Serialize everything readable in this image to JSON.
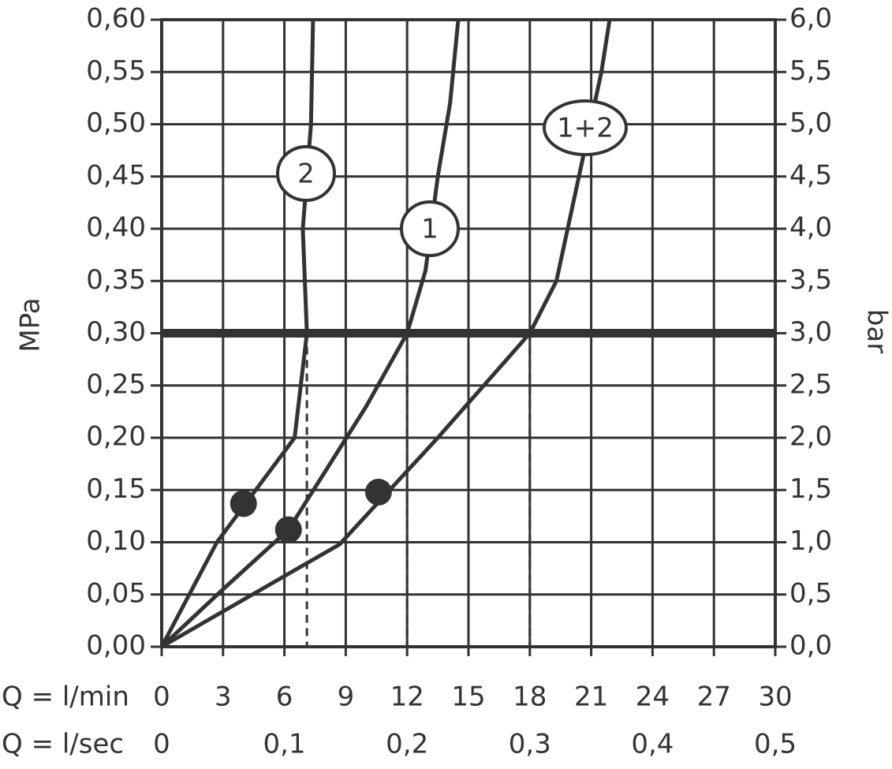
{
  "chart_data": {
    "type": "line",
    "ylabel": "MPa",
    "y2label": "bar",
    "xlabel": "Q = l/min",
    "x2label": "Q = l/sec",
    "xlim": [
      0,
      30
    ],
    "xticks": [
      0,
      3,
      6,
      9,
      12,
      15,
      18,
      21,
      24,
      27,
      30
    ],
    "x2lim": [
      0,
      0.5
    ],
    "x2ticks": [
      0,
      {
        "value": 0.1,
        "label": "0,1"
      },
      {
        "value": 0.2,
        "label": "0,2"
      },
      {
        "value": 0.3,
        "label": "0,3"
      },
      {
        "value": 0.4,
        "label": "0,4"
      },
      {
        "value": 0.5,
        "label": "0,5"
      }
    ],
    "ylim": [
      0,
      0.6
    ],
    "yticks": [
      {
        "value": 0,
        "label": "0,00"
      },
      {
        "value": 0.05,
        "label": "0,05"
      },
      {
        "value": 0.1,
        "label": "0,10"
      },
      {
        "value": 0.15,
        "label": "0,15"
      },
      {
        "value": 0.2,
        "label": "0,20"
      },
      {
        "value": 0.25,
        "label": "0,25"
      },
      {
        "value": 0.3,
        "label": "0,30"
      },
      {
        "value": 0.35,
        "label": "0,35"
      },
      {
        "value": 0.4,
        "label": "0,40"
      },
      {
        "value": 0.45,
        "label": "0,45"
      },
      {
        "value": 0.5,
        "label": "0,50"
      },
      {
        "value": 0.55,
        "label": "0,55"
      },
      {
        "value": 0.6,
        "label": "0,60"
      }
    ],
    "y2lim": [
      0,
      6
    ],
    "y2ticks": [
      {
        "value": 0,
        "label": "0,0"
      },
      {
        "value": 0.5,
        "label": "0,5"
      },
      {
        "value": 1,
        "label": "1,0"
      },
      {
        "value": 1.5,
        "label": "1,5"
      },
      {
        "value": 2,
        "label": "2,0"
      },
      {
        "value": 2.5,
        "label": "2,5"
      },
      {
        "value": 3,
        "label": "3,0"
      },
      {
        "value": 3.5,
        "label": "3,5"
      },
      {
        "value": 4,
        "label": "4,0"
      },
      {
        "value": 4.5,
        "label": "4,5"
      },
      {
        "value": 5,
        "label": "5,0"
      },
      {
        "value": 5.5,
        "label": "5,5"
      },
      {
        "value": 6,
        "label": "6,0"
      }
    ],
    "grid": true,
    "color": "#333333",
    "reference_line": 0.3,
    "drop_lines": [
      7.1,
      12,
      18
    ],
    "series": [
      {
        "name": "2",
        "x": [
          0,
          2.7,
          6.5,
          7.1,
          6.9,
          7.3,
          7.4
        ],
        "y": [
          0,
          0.1,
          0.2,
          0.3,
          0.4,
          0.5,
          0.6
        ]
      },
      {
        "name": "1",
        "x": [
          0,
          3,
          6.2,
          10,
          12,
          12.9,
          13.5,
          14.1,
          14.5
        ],
        "y": [
          0,
          0.055,
          0.112,
          0.23,
          0.3,
          0.36,
          0.45,
          0.52,
          0.6
        ]
      },
      {
        "name": "1+2",
        "x": [
          0,
          8.7,
          13.5,
          18,
          19.3,
          20.4,
          21.5,
          21.9
        ],
        "y": [
          0,
          0.098,
          0.2,
          0.3,
          0.35,
          0.45,
          0.55,
          0.6
        ]
      }
    ],
    "points": {
      "x": [
        4.0,
        6.2,
        10.6
      ],
      "y": [
        0.137,
        0.112,
        0.148
      ]
    }
  }
}
